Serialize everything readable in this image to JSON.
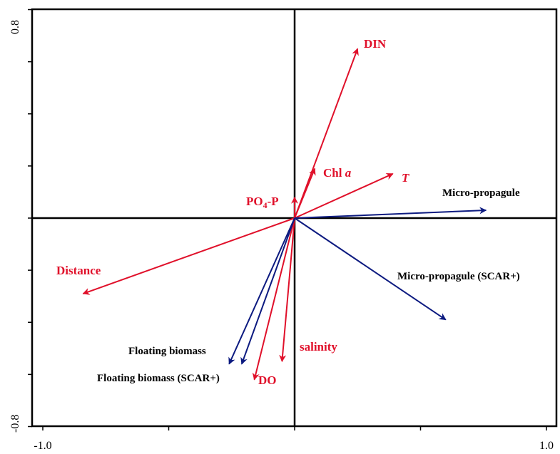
{
  "chart_data": {
    "type": "biplot",
    "xlim": [
      -1.0,
      1.0
    ],
    "ylim": [
      -0.8,
      0.8
    ],
    "x_tick_labels": [
      "-1.0",
      "1.0"
    ],
    "y_tick_labels": [
      "0.8",
      "-0.8"
    ],
    "grid": false,
    "colors": {
      "environment": "#e0102a",
      "response": "#0c1a80"
    },
    "environment_vectors": [
      {
        "label": "DIN",
        "x": 0.25,
        "y": 0.65
      },
      {
        "label_main": "Chl ",
        "label_italic": "a",
        "x": 0.08,
        "y": 0.19
      },
      {
        "label_italic": "T",
        "x": 0.39,
        "y": 0.17
      },
      {
        "label_main": "PO",
        "label_sub": "4",
        "label_tail": "-P",
        "x": 0.0,
        "y": 0.08
      },
      {
        "label": "Distance",
        "x": -0.84,
        "y": -0.29
      },
      {
        "label": "DO",
        "x": -0.16,
        "y": -0.62
      },
      {
        "label": "salinity",
        "x": -0.05,
        "y": -0.55
      }
    ],
    "response_vectors": [
      {
        "label": "Micro-propagule",
        "x": 0.76,
        "y": 0.03
      },
      {
        "label": "Micro-propagule (SCAR+)",
        "x": 0.6,
        "y": -0.39
      },
      {
        "label": "Floating biomass",
        "x": -0.26,
        "y": -0.56
      },
      {
        "label": "Floating biomass (SCAR+)",
        "x": -0.21,
        "y": -0.56
      }
    ]
  }
}
